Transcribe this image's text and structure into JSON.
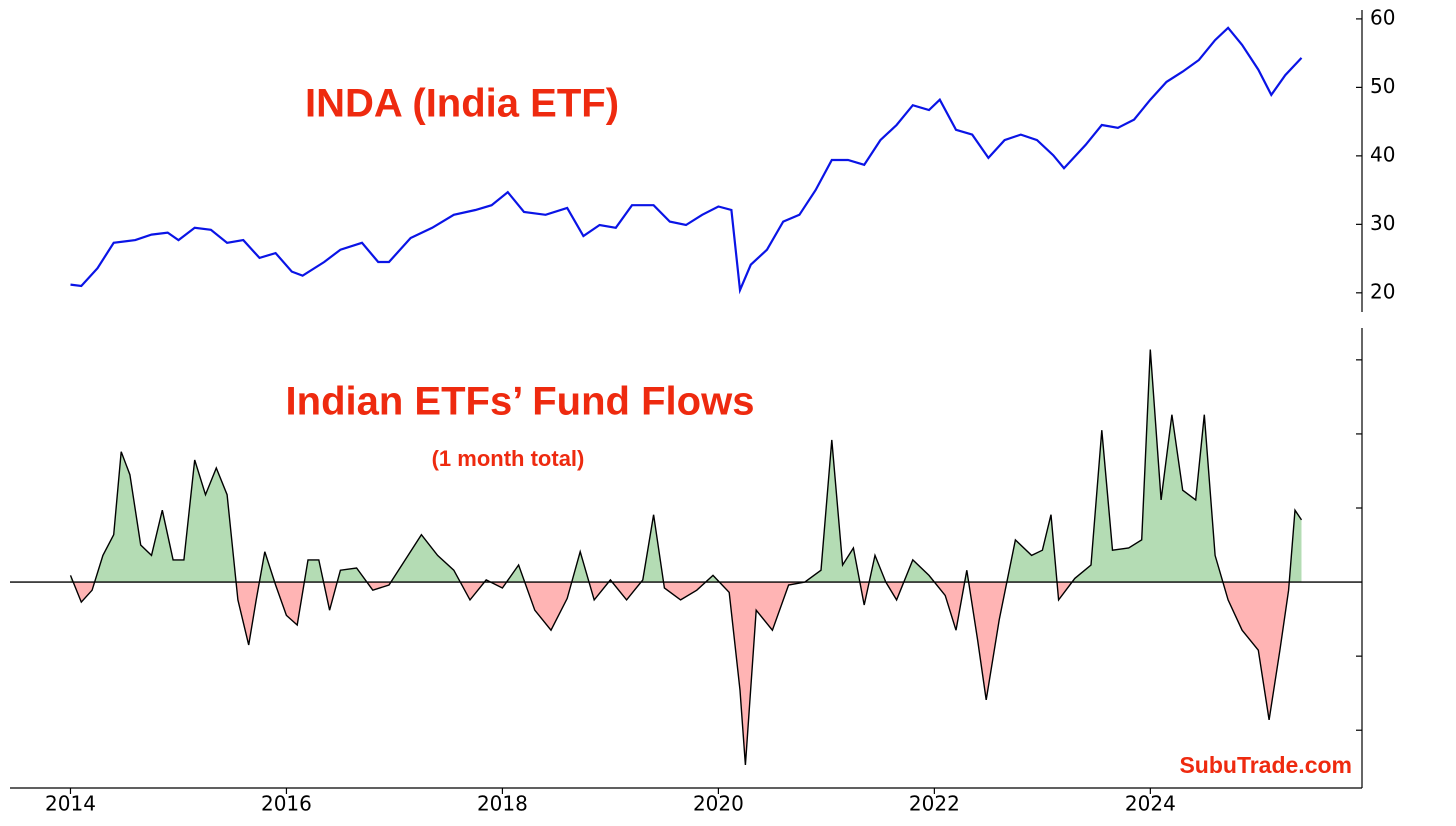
{
  "chart_data": [
    {
      "type": "line",
      "title": "INDA (India ETF)",
      "color": "#0a14e6",
      "xlim": [
        2013.44,
        2025.96
      ],
      "ylim": [
        17.2,
        61.3
      ],
      "yticks": [
        20,
        30,
        40,
        50,
        60
      ],
      "x": [
        2014.0,
        2014.1,
        2014.25,
        2014.4,
        2014.6,
        2014.75,
        2014.9,
        2015.0,
        2015.15,
        2015.3,
        2015.45,
        2015.6,
        2015.75,
        2015.9,
        2016.05,
        2016.15,
        2016.35,
        2016.5,
        2016.7,
        2016.85,
        2016.95,
        2017.15,
        2017.35,
        2017.55,
        2017.75,
        2017.9,
        2018.05,
        2018.2,
        2018.4,
        2018.6,
        2018.75,
        2018.9,
        2019.05,
        2019.2,
        2019.4,
        2019.55,
        2019.7,
        2019.85,
        2020.0,
        2020.12,
        2020.2,
        2020.3,
        2020.45,
        2020.6,
        2020.75,
        2020.9,
        2021.05,
        2021.2,
        2021.35,
        2021.5,
        2021.65,
        2021.8,
        2021.95,
        2022.05,
        2022.2,
        2022.35,
        2022.5,
        2022.65,
        2022.8,
        2022.95,
        2023.1,
        2023.2,
        2023.4,
        2023.55,
        2023.7,
        2023.85,
        2024.0,
        2024.15,
        2024.3,
        2024.45,
        2024.6,
        2024.72,
        2024.85,
        2025.0,
        2025.12,
        2025.25,
        2025.4
      ],
      "values": [
        21.2,
        21,
        23.6,
        27.3,
        27.7,
        28.5,
        28.8,
        27.7,
        29.5,
        29.2,
        27.3,
        27.7,
        25.1,
        25.8,
        23.1,
        22.5,
        24.5,
        26.3,
        27.3,
        24.5,
        24.5,
        28,
        29.5,
        31.4,
        32.1,
        32.8,
        34.7,
        31.8,
        31.4,
        32.4,
        28.3,
        29.9,
        29.5,
        32.8,
        32.8,
        30.4,
        29.9,
        31.4,
        32.6,
        32.1,
        20.4,
        24.1,
        26.3,
        30.4,
        31.4,
        35,
        39.4,
        39.4,
        38.7,
        42.3,
        44.5,
        47.4,
        46.7,
        48.2,
        43.8,
        43.1,
        39.7,
        42.3,
        43.1,
        42.3,
        40.1,
        38.2,
        41.6,
        44.5,
        44.1,
        45.3,
        48.2,
        50.8,
        52.3,
        54,
        56.9,
        58.7,
        56.2,
        52.6,
        48.9,
        51.8,
        54.3
      ]
    },
    {
      "type": "area",
      "title": "Indian ETFs’ Fund Flows",
      "subtitle": "(1 month total)",
      "annotation": "SubuTrade.com",
      "color": "#000000",
      "positive_color": "#b4dcb4",
      "negative_color": "#ffb4b4",
      "xlim": [
        2013.44,
        2025.96
      ],
      "xticks": [
        2014,
        2016,
        2018,
        2020,
        2022,
        2024
      ],
      "ylim": [
        -2.78,
        3.43
      ],
      "yticks": [
        -2,
        -1,
        1,
        2,
        3
      ],
      "x": [
        2014.0,
        2014.1,
        2014.2,
        2014.3,
        2014.4,
        2014.47,
        2014.55,
        2014.65,
        2014.75,
        2014.85,
        2014.95,
        2015.05,
        2015.15,
        2015.25,
        2015.35,
        2015.45,
        2015.55,
        2015.65,
        2015.72,
        2015.8,
        2015.9,
        2016.0,
        2016.1,
        2016.2,
        2016.3,
        2016.4,
        2016.5,
        2016.65,
        2016.8,
        2016.95,
        2017.1,
        2017.25,
        2017.4,
        2017.55,
        2017.7,
        2017.85,
        2018.0,
        2018.15,
        2018.3,
        2018.45,
        2018.6,
        2018.72,
        2018.85,
        2019.0,
        2019.15,
        2019.3,
        2019.4,
        2019.5,
        2019.65,
        2019.8,
        2019.95,
        2020.1,
        2020.2,
        2020.25,
        2020.35,
        2020.5,
        2020.65,
        2020.8,
        2020.95,
        2021.05,
        2021.15,
        2021.25,
        2021.35,
        2021.45,
        2021.55,
        2021.65,
        2021.8,
        2021.95,
        2022.1,
        2022.2,
        2022.3,
        2022.4,
        2022.48,
        2022.6,
        2022.75,
        2022.9,
        2023.0,
        2023.08,
        2023.15,
        2023.3,
        2023.45,
        2023.55,
        2023.65,
        2023.8,
        2023.92,
        2024.0,
        2024.1,
        2024.2,
        2024.3,
        2024.42,
        2024.5,
        2024.6,
        2024.72,
        2024.85,
        2025.0,
        2025.1,
        2025.2,
        2025.28,
        2025.34,
        2025.4
      ],
      "values": [
        0.09,
        -0.27,
        -0.11,
        0.36,
        0.64,
        1.76,
        1.45,
        0.5,
        0.36,
        0.97,
        0.3,
        0.3,
        1.65,
        1.18,
        1.54,
        1.18,
        -0.24,
        -0.85,
        -0.24,
        0.41,
        -0.04,
        -0.45,
        -0.58,
        0.3,
        0.3,
        -0.38,
        0.16,
        0.19,
        -0.11,
        -0.04,
        0.3,
        0.64,
        0.36,
        0.16,
        -0.24,
        0.03,
        -0.08,
        0.23,
        -0.38,
        -0.65,
        -0.22,
        0.41,
        -0.24,
        0.03,
        -0.24,
        0.03,
        0.91,
        -0.08,
        -0.24,
        -0.11,
        0.09,
        -0.14,
        -1.46,
        -2.47,
        -0.38,
        -0.65,
        -0.04,
        0,
        0.16,
        1.92,
        0.23,
        0.46,
        -0.31,
        0.36,
        0,
        -0.24,
        0.3,
        0.09,
        -0.18,
        -0.65,
        0.16,
        -0.78,
        -1.59,
        -0.51,
        0.57,
        0.36,
        0.43,
        0.91,
        -0.24,
        0.05,
        0.23,
        2.05,
        0.43,
        0.46,
        0.57,
        3.14,
        1.11,
        2.26,
        1.24,
        1.11,
        2.26,
        0.36,
        -0.24,
        -0.65,
        -0.92,
        -1.86,
        -0.92,
        -0.11,
        0.97,
        0.84
      ]
    }
  ]
}
